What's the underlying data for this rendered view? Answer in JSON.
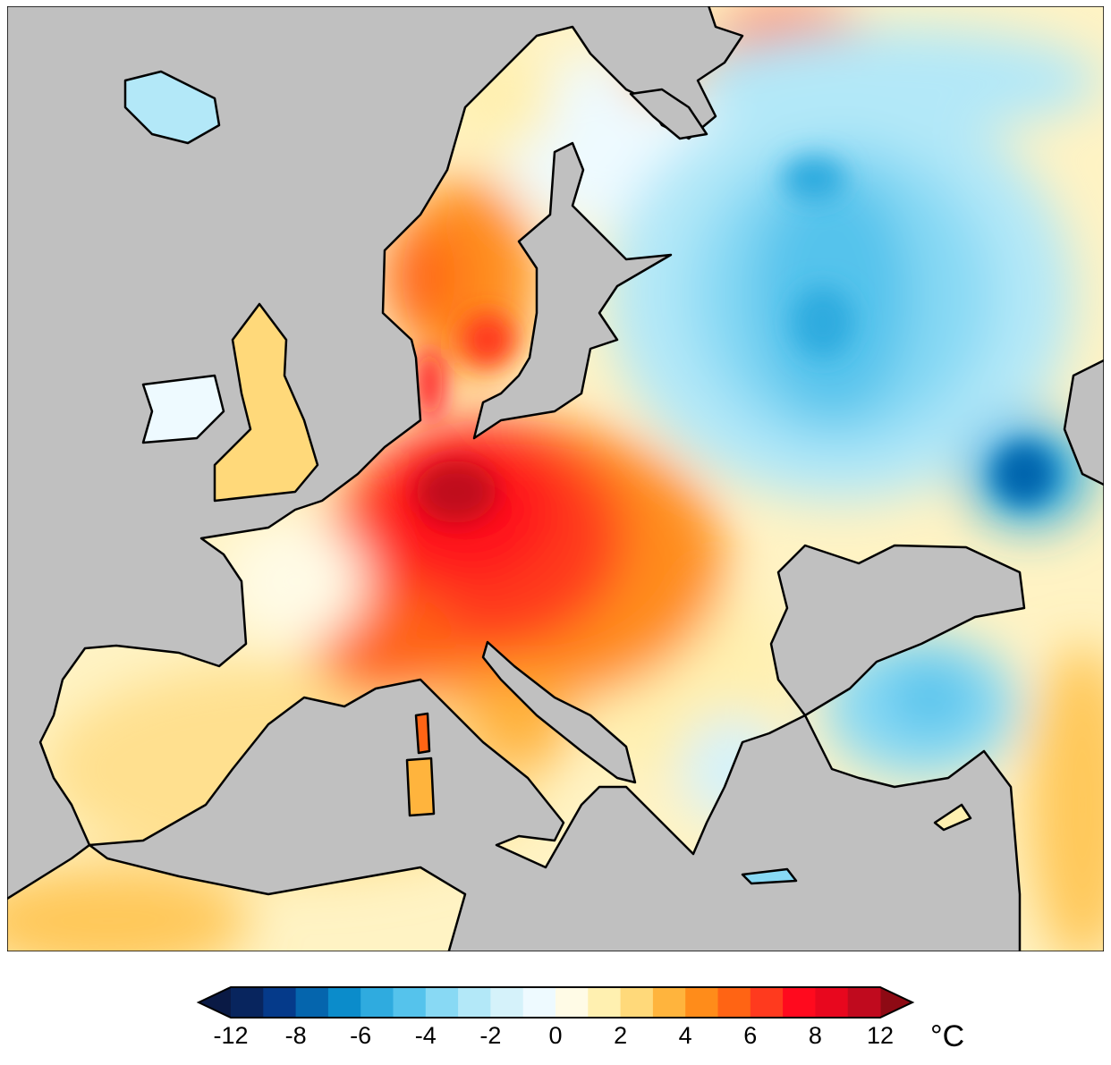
{
  "colorbar": {
    "unit": "°C",
    "tick_labels": [
      "-12",
      "-8",
      "-6",
      "-4",
      "-2",
      "0",
      "2",
      "4",
      "6",
      "8",
      "12"
    ],
    "extend": "both",
    "under_color": "#0a1a45",
    "over_color": "#8e0a14",
    "colors": [
      "#08255e",
      "#053a8a",
      "#0565ad",
      "#0b8ccb",
      "#2fabdf",
      "#55c3ec",
      "#88d9f4",
      "#b3e8f8",
      "#d5f2fa",
      "#eefaff",
      "#fffbe6",
      "#fff0b0",
      "#ffd97a",
      "#ffb43d",
      "#ff8c1a",
      "#ff6414",
      "#ff3a1e",
      "#ff0a1e",
      "#e8071e",
      "#c00a1e"
    ]
  },
  "map": {
    "sea_color": "#c0c0c0",
    "coastline_color": "#000000"
  }
}
